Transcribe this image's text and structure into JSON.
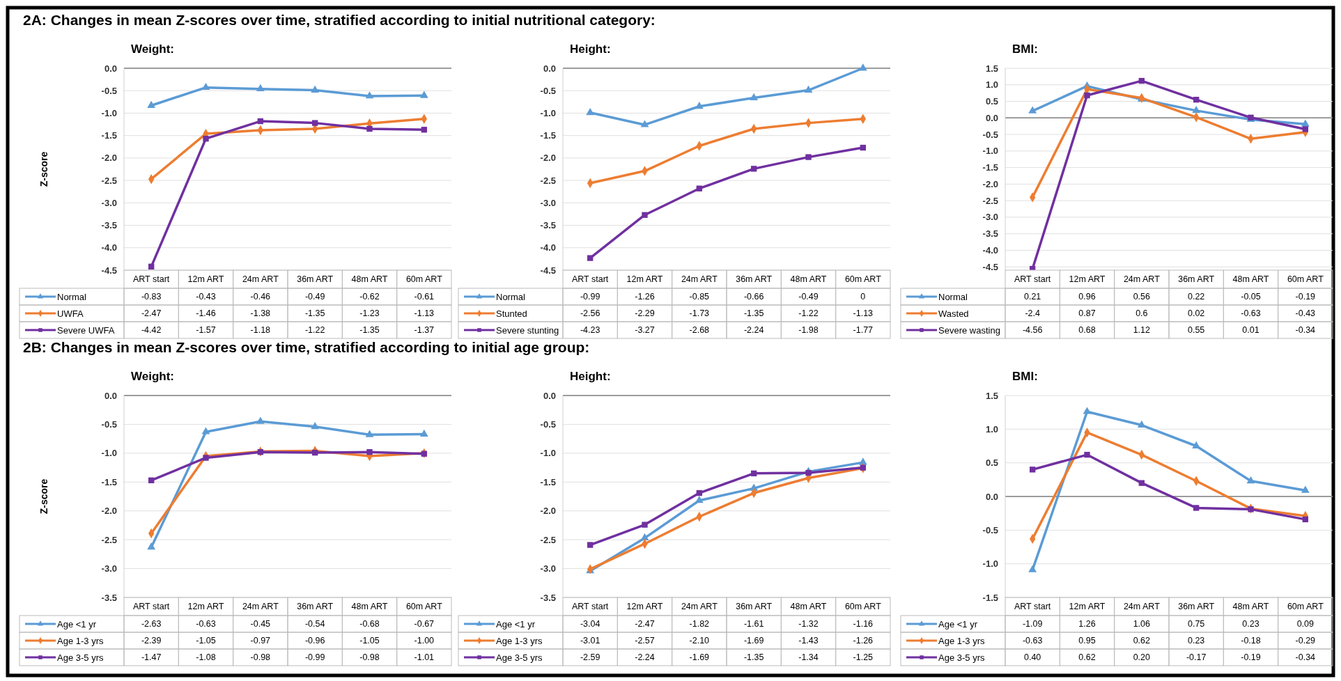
{
  "chart_data": [
    {
      "type": "line",
      "title": "Weight:",
      "ylabel": "Z-score",
      "annotations": [
        "2A: Changes in mean Z-scores over time, stratified according to initial nutritional category:"
      ],
      "categories": [
        "ART start",
        "12m ART",
        "24m ART",
        "36m ART",
        "48m ART",
        "60m ART"
      ],
      "ylim": [
        -4.5,
        0
      ],
      "yticks": [
        {
          "value": 0,
          "label": "0.0"
        },
        -0.5,
        {
          "value": -1,
          "label": "-1.0"
        },
        -1.5,
        {
          "value": -2,
          "label": "-2.0"
        },
        -2.5,
        {
          "value": -3,
          "label": "-3.0"
        },
        -3.5,
        {
          "value": -4,
          "label": "-4.0"
        },
        -4.5
      ],
      "grid": "y",
      "legend": "bottom",
      "data_labels": true,
      "series": [
        {
          "name": "Normal",
          "color": "#5b9bd5",
          "marker": "triangle",
          "values": [
            -0.83,
            -0.43,
            -0.46,
            -0.49,
            -0.62,
            -0.61
          ]
        },
        {
          "name": "UWFA",
          "color": "#ed7d31",
          "marker": "diamond",
          "values": [
            -2.47,
            -1.46,
            -1.38,
            -1.35,
            -1.23,
            -1.13
          ]
        },
        {
          "name": "Severe UWFA",
          "color": "#7030a0",
          "marker": "square",
          "values": [
            -4.42,
            -1.57,
            -1.18,
            -1.22,
            -1.35,
            -1.37
          ]
        }
      ]
    },
    {
      "type": "line",
      "title": "Height:",
      "categories": [
        "ART start",
        "12m ART",
        "24m ART",
        "36m ART",
        "48m ART",
        "60m ART"
      ],
      "ylim": [
        -4.5,
        0
      ],
      "yticks": [
        {
          "value": 0,
          "label": "0.0"
        },
        -0.5,
        {
          "value": -1,
          "label": "-1.0"
        },
        -1.5,
        {
          "value": -2,
          "label": "-2.0"
        },
        -2.5,
        {
          "value": -3,
          "label": "-3.0"
        },
        -3.5,
        {
          "value": -4,
          "label": "-4.0"
        },
        -4.5
      ],
      "grid": "y",
      "legend": "bottom",
      "data_labels": true,
      "series": [
        {
          "name": "Normal",
          "color": "#5b9bd5",
          "marker": "triangle",
          "values": [
            -0.99,
            -1.26,
            -0.85,
            -0.66,
            -0.49,
            0
          ]
        },
        {
          "name": "Stunted",
          "color": "#ed7d31",
          "marker": "diamond",
          "values": [
            -2.56,
            -2.29,
            -1.73,
            -1.35,
            -1.22,
            -1.13
          ]
        },
        {
          "name": "Severe stunting",
          "color": "#7030a0",
          "marker": "square",
          "values": [
            -4.23,
            -3.27,
            -2.68,
            -2.24,
            -1.98,
            -1.77
          ]
        }
      ]
    },
    {
      "type": "line",
      "title": "BMI:",
      "categories": [
        "ART start",
        "12m ART",
        "24m ART",
        "36m ART",
        "48m ART",
        "60m ART"
      ],
      "ylim": [
        -4.6,
        1.5
      ],
      "yticks": [
        1.5,
        {
          "value": 1,
          "label": "1.0"
        },
        0.5,
        {
          "value": 0,
          "label": "0.0"
        },
        -0.5,
        {
          "value": -1,
          "label": "-1.0"
        },
        -1.5,
        {
          "value": -2,
          "label": "-2.0"
        },
        -2.5,
        {
          "value": -3,
          "label": "-3.0"
        },
        -3.5,
        {
          "value": -4,
          "label": "-4.0"
        },
        -4.5
      ],
      "grid": "y",
      "legend": "bottom",
      "data_labels": true,
      "series": [
        {
          "name": "Normal",
          "color": "#5b9bd5",
          "marker": "triangle",
          "values": [
            0.21,
            0.96,
            0.56,
            0.22,
            -0.05,
            -0.19
          ]
        },
        {
          "name": "Wasted",
          "color": "#ed7d31",
          "marker": "diamond",
          "values": [
            -2.4,
            0.87,
            0.6,
            0.02,
            -0.63,
            -0.43
          ]
        },
        {
          "name": "Severe wasting",
          "color": "#7030a0",
          "marker": "square",
          "values": [
            -4.56,
            0.68,
            1.12,
            0.55,
            0.01,
            -0.34
          ]
        }
      ]
    },
    {
      "type": "line",
      "title": "Weight:",
      "ylabel": "Z-score",
      "annotations": [
        "2B: Changes in mean Z-scores over time, stratified according to initial age group:"
      ],
      "categories": [
        "ART start",
        "12m ART",
        "24m ART",
        "36m ART",
        "48m ART",
        "60m ART"
      ],
      "ylim": [
        -3.5,
        0
      ],
      "yticks": [
        {
          "value": 0,
          "label": "0.0"
        },
        -0.5,
        {
          "value": -1,
          "label": "-1.0"
        },
        -1.5,
        {
          "value": -2,
          "label": "-2.0"
        },
        -2.5,
        {
          "value": -3,
          "label": "-3.0"
        },
        -3.5
      ],
      "grid": "y",
      "legend": "bottom",
      "series": [
        {
          "name": "Age <1 yr",
          "color": "#5b9bd5",
          "marker": "triangle",
          "values": [
            -2.63,
            -0.63,
            -0.45,
            -0.54,
            -0.68,
            -0.67
          ],
          "value_labels": [
            "-2.63",
            "-0.63",
            "-0.45",
            "-0.54",
            "-0.68",
            "-0.67"
          ]
        },
        {
          "name": "Age 1-3 yrs",
          "color": "#ed7d31",
          "marker": "diamond",
          "values": [
            -2.39,
            -1.05,
            -0.97,
            -0.96,
            -1.05,
            -1
          ],
          "value_labels": [
            "-2.39",
            "-1.05",
            "-0.97",
            "-0.96",
            "-1.05",
            "-1.00"
          ]
        },
        {
          "name": "Age 3-5 yrs",
          "color": "#7030a0",
          "marker": "square",
          "values": [
            -1.47,
            -1.08,
            -0.98,
            -0.99,
            -0.98,
            -1.01
          ],
          "value_labels": [
            "-1.47",
            "-1.08",
            "-0.98",
            "-0.99",
            "-0.98",
            "-1.01"
          ]
        }
      ]
    },
    {
      "type": "line",
      "title": "Height:",
      "categories": [
        "ART start",
        "12m ART",
        "24m ART",
        "36m ART",
        "48m ART",
        "60m ART"
      ],
      "ylim": [
        -3.5,
        0
      ],
      "yticks": [
        {
          "value": 0,
          "label": "0.0"
        },
        -0.5,
        {
          "value": -1,
          "label": "-1.0"
        },
        -1.5,
        {
          "value": -2,
          "label": "-2.0"
        },
        -2.5,
        {
          "value": -3,
          "label": "-3.0"
        },
        -3.5
      ],
      "grid": "y",
      "legend": "bottom",
      "series": [
        {
          "name": "Age <1 yr",
          "color": "#5b9bd5",
          "marker": "triangle",
          "values": [
            -3.04,
            -2.47,
            -1.82,
            -1.61,
            -1.32,
            -1.16
          ],
          "value_labels": [
            "-3.04",
            "-2.47",
            "-1.82",
            "-1.61",
            "-1.32",
            "-1.16"
          ]
        },
        {
          "name": "Age 1-3 yrs",
          "color": "#ed7d31",
          "marker": "diamond",
          "values": [
            -3.01,
            -2.57,
            -2.1,
            -1.69,
            -1.43,
            -1.26
          ],
          "value_labels": [
            "-3.01",
            "-2.57",
            "-2.10",
            "-1.69",
            "-1.43",
            "-1.26"
          ]
        },
        {
          "name": "Age 3-5 yrs",
          "color": "#7030a0",
          "marker": "square",
          "values": [
            -2.59,
            -2.24,
            -1.69,
            -1.35,
            -1.34,
            -1.25
          ],
          "value_labels": [
            "-2.59",
            "-2.24",
            "-1.69",
            "-1.35",
            "-1.34",
            "-1.25"
          ]
        }
      ]
    },
    {
      "type": "line",
      "title": "BMI:",
      "categories": [
        "ART start",
        "12m ART",
        "24m ART",
        "36m ART",
        "48m ART",
        "60m ART"
      ],
      "ylim": [
        -1.5,
        1.5
      ],
      "yticks": [
        1.5,
        {
          "value": 1,
          "label": "1.0"
        },
        0.5,
        {
          "value": 0,
          "label": "0.0"
        },
        -0.5,
        {
          "value": -1,
          "label": "-1.0"
        },
        -1.5
      ],
      "grid": "y",
      "legend": "bottom",
      "series": [
        {
          "name": "Age <1 yr",
          "color": "#5b9bd5",
          "marker": "triangle",
          "values": [
            -1.09,
            1.26,
            1.06,
            0.75,
            0.23,
            0.09
          ],
          "value_labels": [
            "-1.09",
            "1.26",
            "1.06",
            "0.75",
            "0.23",
            "0.09"
          ]
        },
        {
          "name": "Age 1-3 yrs",
          "color": "#ed7d31",
          "marker": "diamond",
          "values": [
            -0.63,
            0.95,
            0.62,
            0.23,
            -0.18,
            -0.29
          ],
          "value_labels": [
            "-0.63",
            "0.95",
            "0.62",
            "0.23",
            "-0.18",
            "-0.29"
          ]
        },
        {
          "name": "Age 3-5 yrs",
          "color": "#7030a0",
          "marker": "square",
          "values": [
            0.4,
            0.62,
            0.2,
            -0.17,
            -0.19,
            -0.34
          ],
          "value_labels": [
            "0.40",
            "0.62",
            "0.20",
            "-0.17",
            "-0.19",
            "-0.34"
          ]
        }
      ]
    }
  ]
}
